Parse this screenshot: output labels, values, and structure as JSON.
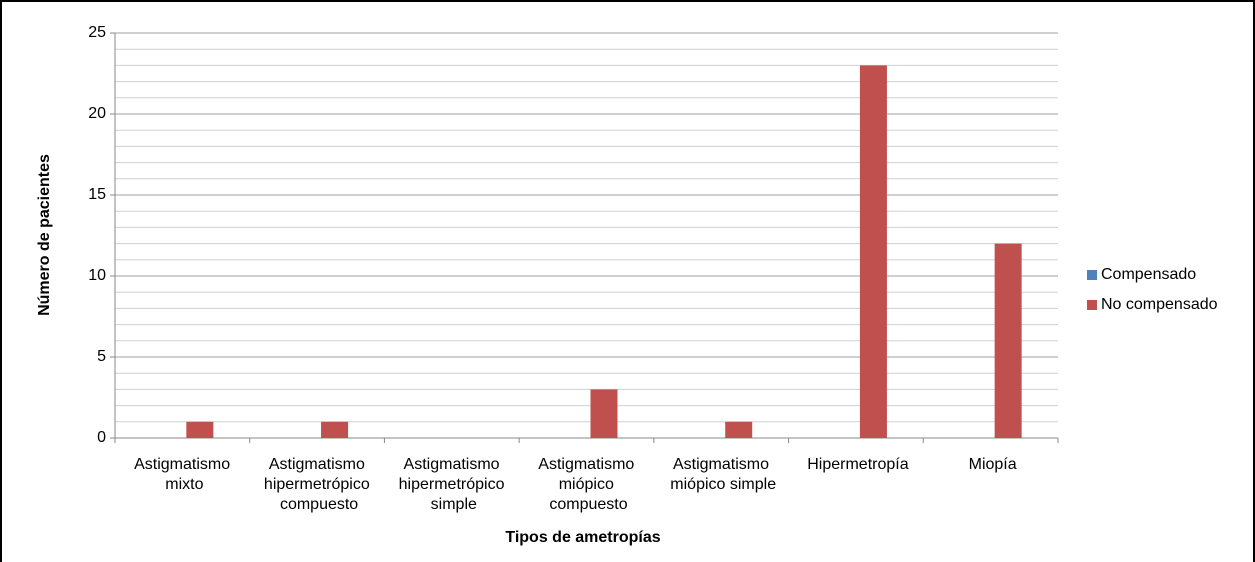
{
  "chart_data": {
    "type": "bar",
    "x_label": "Tipos de ametropías",
    "y_label": "Número de pacientes",
    "categories": [
      "Astigmatismo mixto",
      "Astigmatismo hipermetrópico compuesto",
      "Astigmatismo hipermetrópico simple",
      "Astigmatismo miópico compuesto",
      "Astigmatismo miópico simple",
      "Hipermetropía",
      "Miopía"
    ],
    "series": [
      {
        "name": "Compensado",
        "color": "#4f81bd",
        "values": [
          0,
          0,
          0,
          0,
          0,
          0,
          0
        ]
      },
      {
        "name": "No compensado",
        "color": "#c0504d",
        "values": [
          1,
          1,
          0,
          3,
          1,
          23,
          12
        ]
      }
    ],
    "ylim": [
      0,
      25
    ],
    "yticks": [
      0,
      5,
      10,
      15,
      20,
      25
    ],
    "minor_yticks": [
      1,
      2,
      3,
      4,
      6,
      7,
      8,
      9,
      11,
      12,
      13,
      14,
      16,
      17,
      18,
      19,
      21,
      22,
      23,
      24
    ],
    "grid": true,
    "legend": "right"
  }
}
